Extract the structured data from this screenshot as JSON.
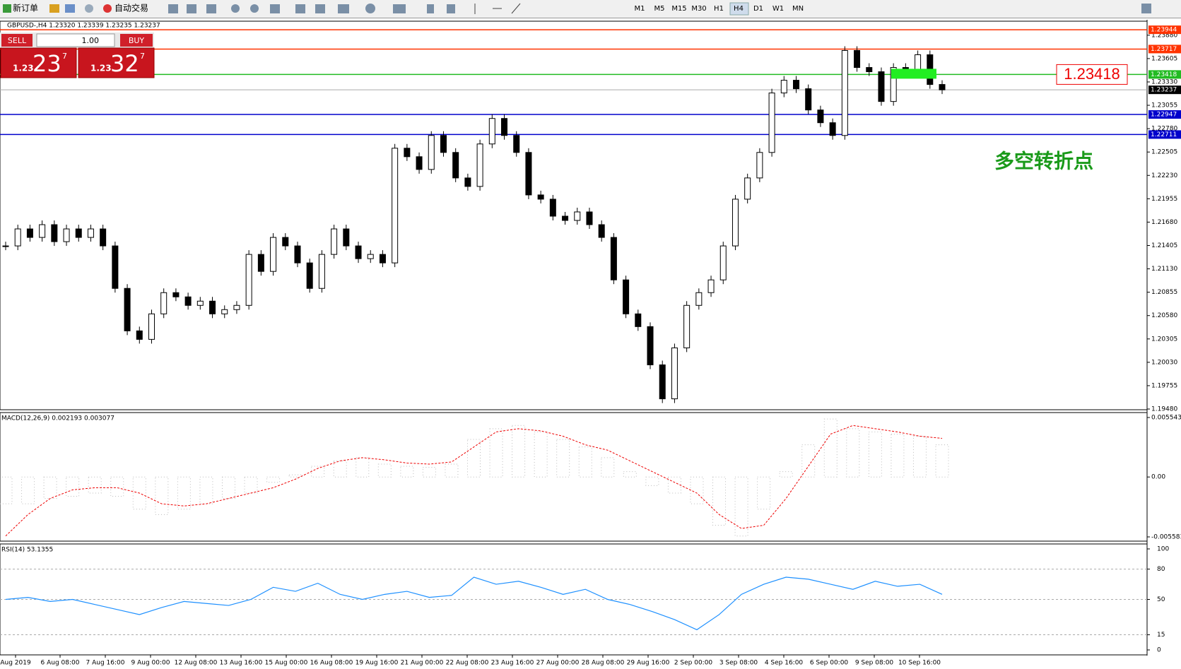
{
  "toolbar": {
    "new_order": "新订单",
    "auto_trading": "自动交易",
    "timeframes": [
      "M1",
      "M5",
      "M15",
      "M30",
      "H1",
      "H4",
      "D1",
      "W1",
      "MN"
    ],
    "active_timeframe": "H4"
  },
  "chart_header": "GBPUSD-,H4  1.23320 1.23339 1.23235 1.23237",
  "trade_panel": {
    "sell": "SELL",
    "buy": "BUY",
    "lots": "1.00",
    "sell_price": {
      "prefix": "1.23",
      "big": "23",
      "sup": "7"
    },
    "buy_price": {
      "prefix": "1.23",
      "big": "32",
      "sup": "7"
    }
  },
  "annotations": {
    "price_box": "1.23418",
    "note": "多空转折点"
  },
  "chart_data": {
    "type": "candlestick",
    "closes": [
      1.214,
      1.216,
      1.215,
      1.2165,
      1.2145,
      1.216,
      1.215,
      1.216,
      1.214,
      1.209,
      1.204,
      1.203,
      1.206,
      1.2085,
      1.208,
      1.207,
      1.2075,
      1.206,
      1.2065,
      1.207,
      1.213,
      1.211,
      1.215,
      1.214,
      1.212,
      1.209,
      1.213,
      1.216,
      1.214,
      1.2125,
      1.213,
      1.212,
      1.2255,
      1.2245,
      1.223,
      1.227,
      1.225,
      1.222,
      1.221,
      1.226,
      1.229,
      1.227,
      1.225,
      1.22,
      1.2195,
      1.2175,
      1.217,
      1.218,
      1.2165,
      1.215,
      1.21,
      1.206,
      1.2045,
      1.2,
      1.196,
      1.202,
      1.207,
      1.2085,
      1.21,
      1.214,
      1.2195,
      1.222,
      1.225,
      1.232,
      1.2335,
      1.2325,
      1.23,
      1.2285,
      1.227,
      1.237,
      1.235,
      1.2345,
      1.231,
      1.235,
      1.2345,
      1.2365,
      1.233,
      1.23237
    ],
    "ylim": [
      1.1948,
      1.2402
    ],
    "yticks": [
      {
        "value": 1.2388,
        "label": "1.23880"
      },
      {
        "value": 1.23605,
        "label": "1.23605"
      },
      {
        "value": 1.2333,
        "label": "1.23330"
      },
      {
        "value": 1.23055,
        "label": "1.23055"
      },
      {
        "value": 1.2278,
        "label": "1.22780"
      },
      {
        "value": 1.22505,
        "label": "1.22505"
      },
      {
        "value": 1.2223,
        "label": "1.22230"
      },
      {
        "value": 1.21955,
        "label": "1.21955"
      },
      {
        "value": 1.2168,
        "label": "1.21680"
      },
      {
        "value": 1.21405,
        "label": "1.21405"
      },
      {
        "value": 1.2113,
        "label": "1.21130"
      },
      {
        "value": 1.20855,
        "label": "1.20855"
      },
      {
        "value": 1.2058,
        "label": "1.20580"
      },
      {
        "value": 1.20305,
        "label": "1.20305"
      },
      {
        "value": 1.2003,
        "label": "1.20030"
      },
      {
        "value": 1.19755,
        "label": "1.19755"
      },
      {
        "value": 1.1948,
        "label": "1.19480"
      }
    ],
    "lines": [
      {
        "value": 1.23944,
        "label": "1.23944",
        "color": "#ff3300"
      },
      {
        "value": 1.23717,
        "label": "1.23717",
        "color": "#ff3300"
      },
      {
        "value": 1.23418,
        "label": "1.23418",
        "color": "#22bb22"
      },
      {
        "value": 1.23237,
        "label": "1.23237",
        "color": "#000000"
      },
      {
        "value": 1.22947,
        "label": "1.22947",
        "color": "#0000cc"
      },
      {
        "value": 1.22711,
        "label": "1.22711",
        "color": "#0000cc"
      }
    ],
    "x_labels": [
      "Aug 2019",
      "6 Aug 08:00",
      "7 Aug 16:00",
      "9 Aug 00:00",
      "12 Aug 08:00",
      "13 Aug 16:00",
      "15 Aug 00:00",
      "16 Aug 08:00",
      "19 Aug 16:00",
      "21 Aug 00:00",
      "22 Aug 08:00",
      "23 Aug 16:00",
      "27 Aug 00:00",
      "28 Aug 08:00",
      "29 Aug 16:00",
      "2 Sep 00:00",
      "3 Sep 08:00",
      "4 Sep 16:00",
      "6 Sep 00:00",
      "9 Sep 08:00",
      "10 Sep 16:00"
    ],
    "macd": {
      "title": "MACD(12,26,9) 0.002193 0.003077",
      "ylim": [
        -0.005583,
        0.005543
      ],
      "yticks": [
        {
          "value": 0.005543,
          "label": "0.005543"
        },
        {
          "value": 0,
          "label": "0.00"
        },
        {
          "value": -0.005583,
          "label": "-0.005583"
        }
      ],
      "histogram": [
        -0.0025,
        -0.0025,
        -0.002,
        -0.0018,
        -0.0015,
        -0.0018,
        -0.003,
        -0.0035,
        -0.003,
        -0.0025,
        -0.002,
        -0.0015,
        -0.0005,
        0.0002,
        0.001,
        0.0015,
        0.0018,
        0.0012,
        0.001,
        0.0009,
        0.0012,
        0.0035,
        0.0045,
        0.0048,
        0.0042,
        0.0035,
        0.0028,
        0.0018,
        0.0005,
        -0.0008,
        -0.0015,
        -0.0025,
        -0.0045,
        -0.0055,
        -0.003,
        0.0005,
        0.003,
        0.0054,
        0.0045,
        0.0042,
        0.004,
        0.0038,
        0.003
      ],
      "signal": [
        -0.0055,
        -0.0035,
        -0.002,
        -0.0012,
        -0.001,
        -0.001,
        -0.0015,
        -0.0025,
        -0.0027,
        -0.0025,
        -0.002,
        -0.0015,
        -0.001,
        -0.0002,
        0.0008,
        0.0015,
        0.0018,
        0.0016,
        0.0013,
        0.0012,
        0.0014,
        0.0028,
        0.0042,
        0.0045,
        0.0043,
        0.0038,
        0.003,
        0.0025,
        0.0015,
        0.0005,
        -0.0005,
        -0.0015,
        -0.0035,
        -0.0048,
        -0.0045,
        -0.002,
        0.001,
        0.004,
        0.0048,
        0.0045,
        0.0042,
        0.0038,
        0.0036
      ]
    },
    "rsi": {
      "title": "RSI(14) 53.1355",
      "ylim": [
        0,
        100
      ],
      "yticks": [
        100,
        80,
        50,
        15,
        0
      ],
      "levels": [
        80,
        50,
        15
      ],
      "values": [
        50,
        52,
        48,
        50,
        45,
        40,
        35,
        42,
        48,
        46,
        44,
        50,
        62,
        58,
        66,
        55,
        50,
        55,
        58,
        52,
        54,
        72,
        65,
        68,
        62,
        55,
        60,
        50,
        45,
        38,
        30,
        20,
        35,
        55,
        65,
        72,
        70,
        65,
        60,
        68,
        63,
        65,
        55
      ]
    }
  }
}
